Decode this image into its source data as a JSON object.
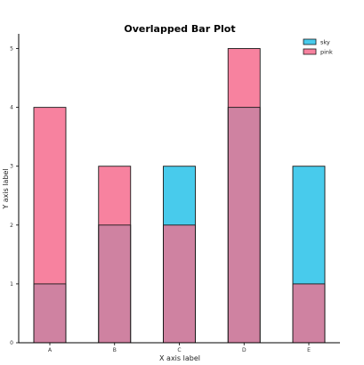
{
  "chart_data": {
    "type": "bar",
    "title": "Overlapped Bar Plot",
    "xlabel": "X axis label",
    "ylabel": "Y axis label",
    "categories": [
      "A",
      "B",
      "C",
      "D",
      "E"
    ],
    "series": [
      {
        "name": "sky",
        "values": [
          1,
          2,
          3,
          4,
          3
        ],
        "color": "#48cbec"
      },
      {
        "name": "pink",
        "values": [
          4,
          3,
          2,
          5,
          1
        ],
        "color": "#f7829f"
      }
    ],
    "overlap_color": "#cf82a1",
    "ylim": [
      0,
      5.25
    ],
    "yticks": [
      0,
      1,
      2,
      3,
      4,
      5
    ],
    "grid": false,
    "legend_position": "top-right"
  }
}
